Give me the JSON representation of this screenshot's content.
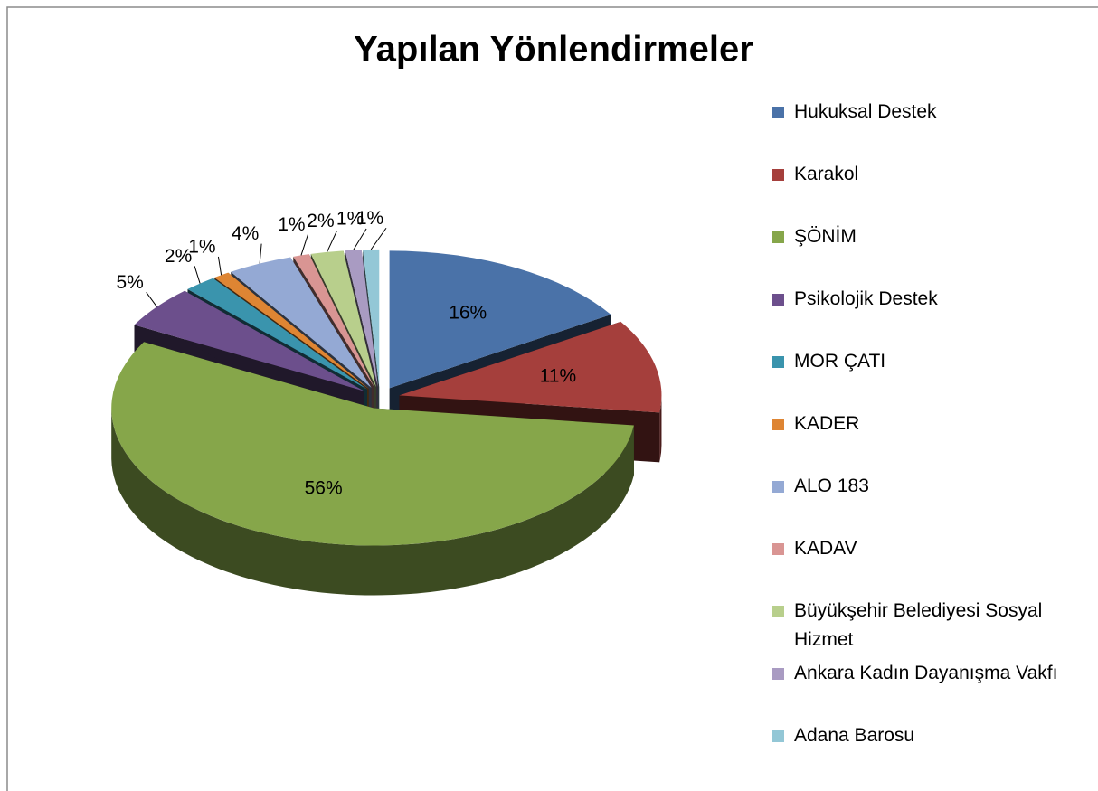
{
  "chart_data": {
    "type": "pie",
    "title": "Yapılan Yönlendirmeler",
    "categories": [
      "Hukuksal Destek",
      "Karakol",
      "ŞÖNİM",
      "Psikolojik Destek",
      "MOR ÇATI",
      "KADER",
      "ALO 183",
      "KADAV",
      "Büyükşehir Belediyesi Sosyal Hizmet",
      "Ankara Kadın Dayanışma Vakfı",
      "Adana Barosu"
    ],
    "values": [
      16,
      11,
      56,
      5,
      2,
      1,
      4,
      1,
      2,
      1,
      1
    ],
    "value_labels": [
      "16%",
      "11%",
      "56%",
      "5%",
      "2%",
      "1%",
      "4%",
      "1%",
      "2%",
      "1%",
      "1%"
    ],
    "colors": [
      "#4a72a8",
      "#a53f3c",
      "#86a64a",
      "#6c4f8c",
      "#3a94ad",
      "#de8533",
      "#94a9d4",
      "#d99593",
      "#b8cf8c",
      "#a99bc2",
      "#93c7d6"
    ],
    "legend": "right"
  }
}
